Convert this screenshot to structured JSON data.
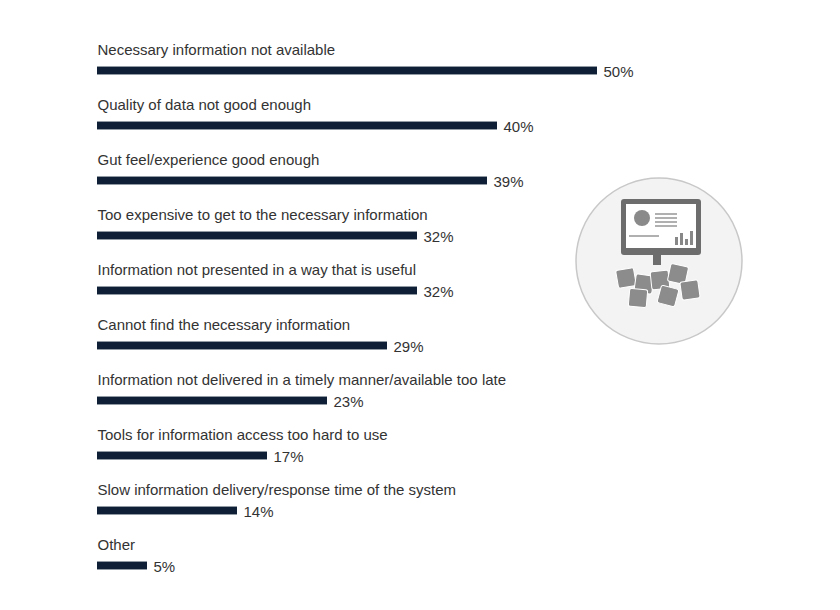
{
  "chart_data": {
    "type": "bar",
    "orientation": "horizontal",
    "categories": [
      "Necessary information not available",
      "Quality of data not good enough",
      "Gut feel/experience good enough",
      "Too expensive to get to the necessary information",
      "Information not presented in a way that is useful",
      "Cannot find the necessary information",
      "Information not delivered in a timely manner/available too late",
      "Tools for information access too hard to use",
      "Slow information delivery/response time of the system",
      "Other"
    ],
    "values": [
      50,
      40,
      39,
      32,
      32,
      29,
      23,
      17,
      14,
      5
    ],
    "value_labels": [
      "50%",
      "40%",
      "39%",
      "32%",
      "32%",
      "29%",
      "23%",
      "17%",
      "14%",
      "5%"
    ],
    "color": "#0f1f35",
    "xlim": [
      0,
      50
    ],
    "data_labels": true,
    "tick_labels": false,
    "grid": false
  }
}
